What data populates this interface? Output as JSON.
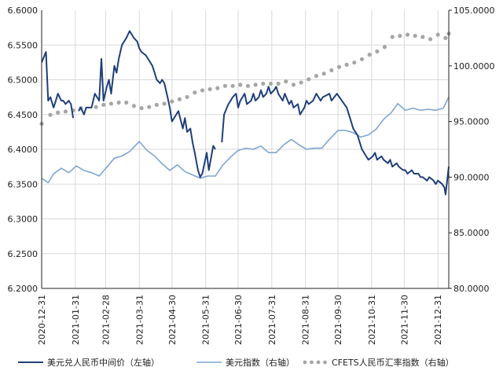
{
  "chart_data": {
    "type": "line",
    "left_axis": {
      "ylim": [
        6.2,
        6.6
      ],
      "ticks": [
        "6.6000",
        "6.5500",
        "6.5000",
        "6.4500",
        "6.4000",
        "6.3500",
        "6.3000",
        "6.2500",
        "6.2000"
      ]
    },
    "right_axis": {
      "ylim": [
        80,
        105
      ],
      "ticks": [
        "105.0000",
        "100.0000",
        "95.0000",
        "90.0000",
        "85.0000",
        "80.0000"
      ]
    },
    "x_tick_labels": [
      "2020-12-31",
      "2021-01-31",
      "2021-02-28",
      "2021-03-31",
      "2021-04-30",
      "2021-05-31",
      "2021-06-30",
      "2021-07-31",
      "2021-08-31",
      "2021-09-30",
      "2021-10-31",
      "2021-11-30",
      "2021-12-31"
    ],
    "x_range": [
      "2020-12-31",
      "2022-01-10"
    ],
    "grid": true,
    "legend_position": "bottom",
    "colors": {
      "usdcny": "#1f3f7a",
      "dxy": "#7ea6d3",
      "cfets": "#a6a6a6"
    },
    "series": [
      {
        "name": "美元兑人民币中间价（左轴）",
        "axis": "left",
        "style": "line",
        "points": [
          [
            "2020-12-31",
            6.525
          ],
          [
            "2021-01-04",
            6.54
          ],
          [
            "2021-01-06",
            6.47
          ],
          [
            "2021-01-08",
            6.475
          ],
          [
            "2021-01-11",
            6.46
          ],
          [
            "2021-01-13",
            6.47
          ],
          [
            "2021-01-15",
            6.48
          ],
          [
            "2021-01-18",
            6.47
          ],
          [
            "2021-01-20",
            6.47
          ],
          [
            "2021-01-22",
            6.465
          ],
          [
            "2021-01-25",
            6.47
          ],
          [
            "2021-01-27",
            6.465
          ],
          [
            "2021-01-29",
            6.445
          ],
          null,
          [
            "2021-02-03",
            6.455
          ],
          [
            "2021-02-05",
            6.46
          ],
          [
            "2021-02-08",
            6.45
          ],
          [
            "2021-02-10",
            6.46
          ],
          [
            "2021-02-15",
            6.46
          ],
          [
            "2021-02-18",
            6.48
          ],
          [
            "2021-02-22",
            6.47
          ],
          [
            "2021-02-24",
            6.53
          ],
          [
            "2021-02-26",
            6.47
          ],
          [
            "2021-03-01",
            6.49
          ],
          [
            "2021-03-03",
            6.5
          ],
          [
            "2021-03-05",
            6.48
          ],
          [
            "2021-03-08",
            6.52
          ],
          [
            "2021-03-10",
            6.51
          ],
          [
            "2021-03-12",
            6.53
          ],
          [
            "2021-03-15",
            6.55
          ],
          [
            "2021-03-17",
            6.555
          ],
          [
            "2021-03-19",
            6.56
          ],
          [
            "2021-03-22",
            6.57
          ],
          [
            "2021-03-24",
            6.565
          ],
          [
            "2021-03-26",
            6.56
          ],
          [
            "2021-03-29",
            6.555
          ],
          [
            "2021-03-31",
            6.545
          ],
          [
            "2021-04-02",
            6.54
          ],
          [
            "2021-04-06",
            6.535
          ],
          [
            "2021-04-08",
            6.53
          ],
          [
            "2021-04-12",
            6.52
          ],
          [
            "2021-04-14",
            6.51
          ],
          [
            "2021-04-16",
            6.5
          ],
          [
            "2021-04-19",
            6.495
          ],
          [
            "2021-04-21",
            6.5
          ],
          [
            "2021-04-23",
            6.495
          ],
          [
            "2021-04-26",
            6.475
          ],
          [
            "2021-04-28",
            6.46
          ],
          [
            "2021-04-30",
            6.44
          ],
          [
            "2021-05-06",
            6.455
          ],
          [
            "2021-05-10",
            6.43
          ],
          [
            "2021-05-12",
            6.445
          ],
          [
            "2021-05-14",
            6.425
          ],
          [
            "2021-05-17",
            6.43
          ],
          [
            "2021-05-19",
            6.41
          ],
          [
            "2021-05-21",
            6.395
          ],
          [
            "2021-05-24",
            6.37
          ],
          [
            "2021-05-26",
            6.36
          ],
          [
            "2021-05-28",
            6.365
          ],
          [
            "2021-06-01",
            6.395
          ],
          [
            "2021-06-03",
            6.37
          ],
          [
            "2021-06-07",
            6.405
          ],
          [
            "2021-06-09",
            6.4
          ],
          null,
          [
            "2021-06-15",
            6.41
          ],
          [
            "2021-06-17",
            6.45
          ],
          [
            "2021-06-21",
            6.465
          ],
          [
            "2021-06-23",
            6.47
          ],
          [
            "2021-06-25",
            6.475
          ],
          [
            "2021-06-28",
            6.48
          ],
          [
            "2021-06-30",
            6.46
          ],
          [
            "2021-07-02",
            6.47
          ],
          [
            "2021-07-06",
            6.48
          ],
          [
            "2021-07-08",
            6.465
          ],
          [
            "2021-07-12",
            6.47
          ],
          [
            "2021-07-14",
            6.48
          ],
          [
            "2021-07-16",
            6.47
          ],
          [
            "2021-07-19",
            6.475
          ],
          [
            "2021-07-21",
            6.485
          ],
          [
            "2021-07-23",
            6.475
          ],
          [
            "2021-07-26",
            6.48
          ],
          [
            "2021-07-28",
            6.49
          ],
          [
            "2021-07-30",
            6.48
          ],
          [
            "2021-08-02",
            6.485
          ],
          [
            "2021-08-04",
            6.49
          ],
          [
            "2021-08-06",
            6.48
          ],
          [
            "2021-08-10",
            6.47
          ],
          [
            "2021-08-12",
            6.48
          ],
          [
            "2021-08-16",
            6.465
          ],
          [
            "2021-08-18",
            6.47
          ],
          [
            "2021-08-20",
            6.46
          ],
          [
            "2021-08-24",
            6.465
          ],
          [
            "2021-08-26",
            6.45
          ],
          [
            "2021-08-30",
            6.46
          ],
          [
            "2021-09-01",
            6.47
          ],
          [
            "2021-09-03",
            6.465
          ],
          [
            "2021-09-07",
            6.47
          ],
          [
            "2021-09-10",
            6.48
          ],
          [
            "2021-09-14",
            6.47
          ],
          [
            "2021-09-16",
            6.475
          ],
          [
            "2021-09-22",
            6.48
          ],
          [
            "2021-09-24",
            6.47
          ],
          [
            "2021-09-29",
            6.48
          ],
          [
            "2021-10-08",
            6.46
          ],
          [
            "2021-10-12",
            6.44
          ],
          [
            "2021-10-14",
            6.43
          ],
          [
            "2021-10-18",
            6.42
          ],
          [
            "2021-10-20",
            6.41
          ],
          [
            "2021-10-22",
            6.4
          ],
          [
            "2021-10-26",
            6.39
          ],
          [
            "2021-10-28",
            6.385
          ],
          [
            "2021-11-01",
            6.39
          ],
          [
            "2021-11-03",
            6.395
          ],
          [
            "2021-11-05",
            6.385
          ],
          [
            "2021-11-09",
            6.39
          ],
          [
            "2021-11-11",
            6.385
          ],
          [
            "2021-11-15",
            6.38
          ],
          [
            "2021-11-17",
            6.385
          ],
          [
            "2021-11-19",
            6.375
          ],
          [
            "2021-11-23",
            6.38
          ],
          [
            "2021-11-25",
            6.375
          ],
          [
            "2021-11-29",
            6.37
          ],
          [
            "2021-12-01",
            6.37
          ],
          [
            "2021-12-03",
            6.365
          ],
          [
            "2021-12-07",
            6.37
          ],
          [
            "2021-12-09",
            6.365
          ],
          [
            "2021-12-13",
            6.365
          ],
          [
            "2021-12-15",
            6.36
          ],
          [
            "2021-12-17",
            6.36
          ],
          [
            "2021-12-21",
            6.355
          ],
          [
            "2021-12-23",
            6.36
          ],
          [
            "2021-12-27",
            6.355
          ],
          [
            "2021-12-29",
            6.35
          ],
          [
            "2021-12-31",
            6.355
          ],
          [
            "2022-01-04",
            6.35
          ],
          [
            "2022-01-06",
            6.345
          ],
          [
            "2022-01-07",
            6.335
          ],
          [
            "2022-01-10",
            6.375
          ]
        ]
      },
      {
        "name": "美元指数（右轴）",
        "axis": "right",
        "style": "line",
        "points": [
          [
            "2020-12-31",
            89.9
          ],
          [
            "2021-01-06",
            89.5
          ],
          [
            "2021-01-11",
            90.3
          ],
          [
            "2021-01-18",
            90.8
          ],
          [
            "2021-01-25",
            90.4
          ],
          [
            "2021-02-01",
            91.0
          ],
          [
            "2021-02-08",
            90.6
          ],
          [
            "2021-02-15",
            90.4
          ],
          [
            "2021-02-22",
            90.1
          ],
          [
            "2021-03-01",
            90.9
          ],
          [
            "2021-03-08",
            91.7
          ],
          [
            "2021-03-15",
            91.9
          ],
          [
            "2021-03-22",
            92.3
          ],
          [
            "2021-03-31",
            93.2
          ],
          [
            "2021-04-07",
            92.4
          ],
          [
            "2021-04-14",
            91.9
          ],
          [
            "2021-04-21",
            91.2
          ],
          [
            "2021-04-28",
            90.6
          ],
          [
            "2021-05-05",
            91.1
          ],
          [
            "2021-05-12",
            90.5
          ],
          [
            "2021-05-19",
            90.2
          ],
          [
            "2021-05-26",
            89.9
          ],
          [
            "2021-06-02",
            90.1
          ],
          [
            "2021-06-09",
            90.1
          ],
          [
            "2021-06-16",
            91.1
          ],
          [
            "2021-06-23",
            91.8
          ],
          [
            "2021-06-30",
            92.4
          ],
          [
            "2021-07-07",
            92.6
          ],
          [
            "2021-07-14",
            92.5
          ],
          [
            "2021-07-21",
            92.8
          ],
          [
            "2021-07-28",
            92.2
          ],
          [
            "2021-08-04",
            92.2
          ],
          [
            "2021-08-11",
            92.9
          ],
          [
            "2021-08-18",
            93.4
          ],
          [
            "2021-08-25",
            92.9
          ],
          [
            "2021-09-01",
            92.5
          ],
          [
            "2021-09-08",
            92.6
          ],
          [
            "2021-09-15",
            92.6
          ],
          [
            "2021-09-22",
            93.4
          ],
          [
            "2021-09-30",
            94.2
          ],
          [
            "2021-10-07",
            94.2
          ],
          [
            "2021-10-14",
            94.0
          ],
          [
            "2021-10-21",
            93.6
          ],
          [
            "2021-10-28",
            93.8
          ],
          [
            "2021-11-04",
            94.3
          ],
          [
            "2021-11-11",
            95.2
          ],
          [
            "2021-11-18",
            95.8
          ],
          [
            "2021-11-24",
            96.6
          ],
          [
            "2021-12-01",
            96.0
          ],
          [
            "2021-12-08",
            96.2
          ],
          [
            "2021-12-15",
            96.0
          ],
          [
            "2021-12-22",
            96.1
          ],
          [
            "2021-12-29",
            96.0
          ],
          [
            "2022-01-05",
            96.2
          ],
          [
            "2022-01-10",
            97.2
          ]
        ]
      },
      {
        "name": "CFETS人民币汇率指数（右轴）",
        "axis": "right",
        "style": "dots",
        "points": [
          [
            "2020-12-31",
            94.8
          ],
          [
            "2021-01-08",
            95.6
          ],
          [
            "2021-01-15",
            95.8
          ],
          [
            "2021-01-22",
            95.9
          ],
          [
            "2021-01-29",
            96.0
          ],
          [
            "2021-02-05",
            96.2
          ],
          [
            "2021-02-19",
            96.3
          ],
          [
            "2021-02-26",
            96.5
          ],
          [
            "2021-03-05",
            96.6
          ],
          [
            "2021-03-12",
            96.7
          ],
          [
            "2021-03-19",
            96.7
          ],
          [
            "2021-03-26",
            96.4
          ],
          [
            "2021-04-02",
            96.2
          ],
          [
            "2021-04-09",
            96.3
          ],
          [
            "2021-04-16",
            96.5
          ],
          [
            "2021-04-23",
            96.6
          ],
          [
            "2021-04-30",
            96.8
          ],
          [
            "2021-05-07",
            97.0
          ],
          [
            "2021-05-14",
            97.2
          ],
          [
            "2021-05-21",
            97.6
          ],
          [
            "2021-05-28",
            97.8
          ],
          [
            "2021-06-04",
            97.9
          ],
          [
            "2021-06-11",
            98.0
          ],
          [
            "2021-06-18",
            98.2
          ],
          [
            "2021-06-25",
            98.2
          ],
          [
            "2021-07-02",
            98.3
          ],
          [
            "2021-07-09",
            98.2
          ],
          [
            "2021-07-16",
            98.3
          ],
          [
            "2021-07-23",
            98.4
          ],
          [
            "2021-07-30",
            98.4
          ],
          [
            "2021-08-06",
            98.4
          ],
          [
            "2021-08-13",
            98.6
          ],
          [
            "2021-08-20",
            98.3
          ],
          [
            "2021-08-27",
            98.5
          ],
          [
            "2021-09-03",
            98.8
          ],
          [
            "2021-09-10",
            99.1
          ],
          [
            "2021-09-17",
            99.3
          ],
          [
            "2021-09-24",
            99.6
          ],
          [
            "2021-10-01",
            99.9
          ],
          [
            "2021-10-08",
            100.1
          ],
          [
            "2021-10-15",
            100.3
          ],
          [
            "2021-10-22",
            100.6
          ],
          [
            "2021-10-29",
            101.0
          ],
          [
            "2021-11-05",
            101.3
          ],
          [
            "2021-11-12",
            101.7
          ],
          [
            "2021-11-19",
            102.6
          ],
          [
            "2021-11-26",
            102.7
          ],
          [
            "2021-12-03",
            102.8
          ],
          [
            "2021-12-10",
            102.7
          ],
          [
            "2021-12-17",
            102.6
          ],
          [
            "2021-12-24",
            102.4
          ],
          [
            "2021-12-31",
            102.8
          ],
          [
            "2022-01-07",
            102.5
          ],
          [
            "2022-01-10",
            102.9
          ]
        ]
      }
    ]
  }
}
